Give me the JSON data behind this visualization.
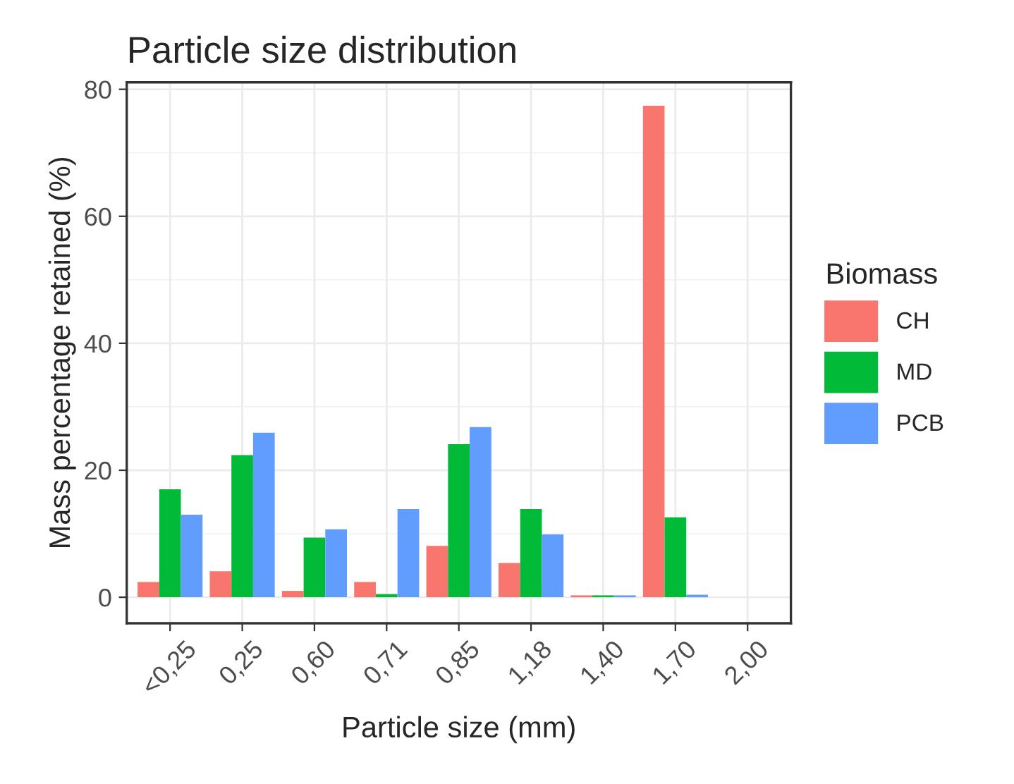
{
  "chart_data": {
    "type": "bar",
    "title": "Particle size distribution",
    "xlabel": "Particle size (mm)",
    "ylabel": "Mass percentage retained (%)",
    "legend_title": "Biomass",
    "categories": [
      "<0,25",
      "0,25",
      "0,60",
      "0,71",
      "0,85",
      "1,18",
      "1,40",
      "1,70",
      "2,00"
    ],
    "series": [
      {
        "name": "CH",
        "color": "#f8766d",
        "values": [
          2.4,
          4.1,
          1.0,
          2.4,
          8.1,
          5.4,
          0.3,
          77.4,
          null
        ]
      },
      {
        "name": "MD",
        "color": "#00ba38",
        "values": [
          17.0,
          22.4,
          9.4,
          0.5,
          24.1,
          13.9,
          0.3,
          12.6,
          null
        ]
      },
      {
        "name": "PCB",
        "color": "#619cff",
        "values": [
          13.0,
          25.9,
          10.7,
          13.9,
          26.8,
          9.9,
          0.3,
          0.4,
          null
        ]
      }
    ],
    "ylim": [
      -4.1,
      81.1
    ],
    "yticks": [
      0,
      20,
      40,
      60,
      80
    ],
    "grid": true,
    "legend": "right"
  }
}
